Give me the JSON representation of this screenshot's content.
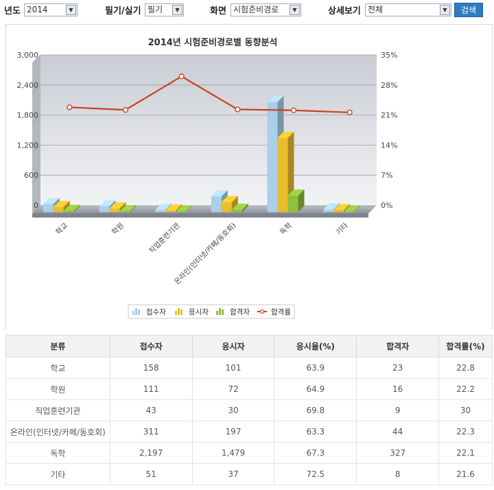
{
  "filters": {
    "year_label": "년도",
    "year_value": "2014",
    "exam_type_label": "필기/실기",
    "exam_type_value": "필기",
    "screen_label": "화면",
    "screen_value": "시험준비경로",
    "detail_label": "상세보기",
    "detail_value": "전체",
    "search_label": "검색"
  },
  "chart_data": {
    "type": "bar",
    "title": "2014년 시험준비경로별 동향분석",
    "categories": [
      "학교",
      "학원",
      "직업훈련기관",
      "온라인(인터넷/카페/동호회)",
      "독학",
      "기타"
    ],
    "series": [
      {
        "name": "접수자",
        "values": [
          158,
          111,
          43,
          311,
          2197,
          51
        ],
        "color": "#a9cfe9"
      },
      {
        "name": "응시자",
        "values": [
          101,
          72,
          30,
          197,
          1479,
          37
        ],
        "color": "#e8bd2f"
      },
      {
        "name": "합격자",
        "values": [
          23,
          16,
          9,
          44,
          327,
          8
        ],
        "color": "#8fbf3f"
      },
      {
        "name": "합격률",
        "values": [
          22.8,
          22.2,
          30,
          22.3,
          22.1,
          21.6
        ],
        "color": "#c8421b",
        "type": "line",
        "axis": "right"
      }
    ],
    "ylim": [
      0,
      3000
    ],
    "yticks": [
      "0",
      "600",
      "1,200",
      "1,800",
      "2,400",
      "3,000"
    ],
    "y2lim": [
      0,
      35
    ],
    "y2ticks": [
      "0%",
      "7%",
      "14%",
      "21%",
      "28%",
      "35%"
    ],
    "legend_position": "bottom-center",
    "grid": true
  },
  "table": {
    "headers": [
      "분류",
      "접수자",
      "응시자",
      "응시율(%)",
      "합격자",
      "합격률(%)"
    ],
    "rows": [
      [
        "학교",
        "158",
        "101",
        "63.9",
        "23",
        "22.8"
      ],
      [
        "학원",
        "111",
        "72",
        "64.9",
        "16",
        "22.2"
      ],
      [
        "직업훈련기관",
        "43",
        "30",
        "69.8",
        "9",
        "30"
      ],
      [
        "온라인(인터넷/카페/동호회)",
        "311",
        "197",
        "63.3",
        "44",
        "22.3"
      ],
      [
        "독학",
        "2,197",
        "1,479",
        "67.3",
        "327",
        "22.1"
      ],
      [
        "기타",
        "51",
        "37",
        "72.5",
        "8",
        "21.6"
      ]
    ]
  }
}
